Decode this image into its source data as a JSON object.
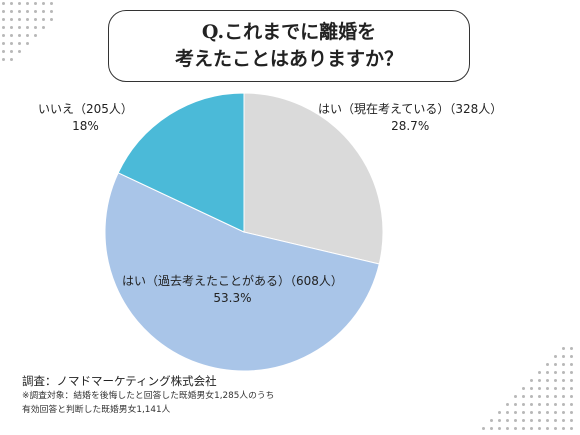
{
  "title": {
    "line1": "Q.これまでに離婚を",
    "line2": "考えたことはありますか？"
  },
  "chart_data": {
    "type": "pie",
    "title": "Q.これまでに離婚を考えたことはありますか？",
    "slices": [
      {
        "label": "はい（現在考えている）（328人）",
        "percent_label": "28.7%",
        "value": 28.7,
        "count": 328,
        "color": "#dadada"
      },
      {
        "label": "はい（過去考えたことがある）（608人）",
        "percent_label": "53.3%",
        "value": 53.3,
        "count": 608,
        "color": "#a9c5e8"
      },
      {
        "label": "いいえ（205人）",
        "percent_label": "18%",
        "value": 18,
        "count": 205,
        "color": "#4bbad8"
      }
    ],
    "start": "12 o'clock",
    "direction": "clockwise",
    "legend": "none"
  },
  "footer": {
    "source": "調査：ノマドマーケティング株式会社",
    "note1": "※調査対象：結婚を後悔したと回答した既婚男女1,285人のうち",
    "note2": "有効回答と判断した既婚男女1,141人"
  }
}
